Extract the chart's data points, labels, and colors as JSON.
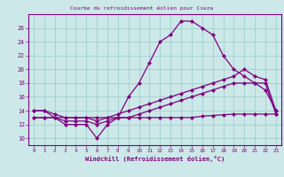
{
  "title": "Courbe du refroidissement éolien pour Cieza",
  "xlabel": "Windchill (Refroidissement éolien,°C)",
  "bg_color": "#cce8e8",
  "line_color": "#800080",
  "grid_color": "#99cccc",
  "hours": [
    0,
    1,
    2,
    3,
    4,
    5,
    6,
    7,
    8,
    9,
    10,
    11,
    12,
    13,
    14,
    15,
    16,
    17,
    18,
    19,
    20,
    21,
    22,
    23
  ],
  "main": [
    14,
    14,
    13,
    12,
    12,
    12,
    10,
    12,
    13,
    16,
    18,
    21,
    24,
    25,
    27,
    27,
    26,
    25,
    22,
    20,
    19,
    18,
    17,
    14
  ],
  "upper": [
    14,
    14,
    13.5,
    13,
    13,
    13,
    12.5,
    13,
    13.5,
    14,
    14.5,
    15,
    15.5,
    16,
    16.5,
    17,
    17.5,
    18,
    18.5,
    19,
    20,
    19,
    18.5,
    14
  ],
  "lower": [
    13,
    13,
    13,
    12.5,
    12.5,
    12.5,
    12,
    12.5,
    13,
    13,
    13.5,
    14,
    14.5,
    15,
    15.5,
    16,
    16.5,
    17,
    17.5,
    18,
    18,
    18,
    18,
    13.5
  ],
  "flat": [
    13,
    13,
    13,
    13,
    13,
    13,
    13,
    13,
    13,
    13,
    13,
    13,
    13,
    13,
    13,
    13,
    13.2,
    13.3,
    13.4,
    13.5,
    13.5,
    13.5,
    13.5,
    13.5
  ],
  "yticks": [
    10,
    12,
    14,
    16,
    18,
    20,
    22,
    24,
    26
  ],
  "ylim": [
    9.0,
    28.0
  ],
  "xlim": [
    -0.5,
    23.5
  ]
}
